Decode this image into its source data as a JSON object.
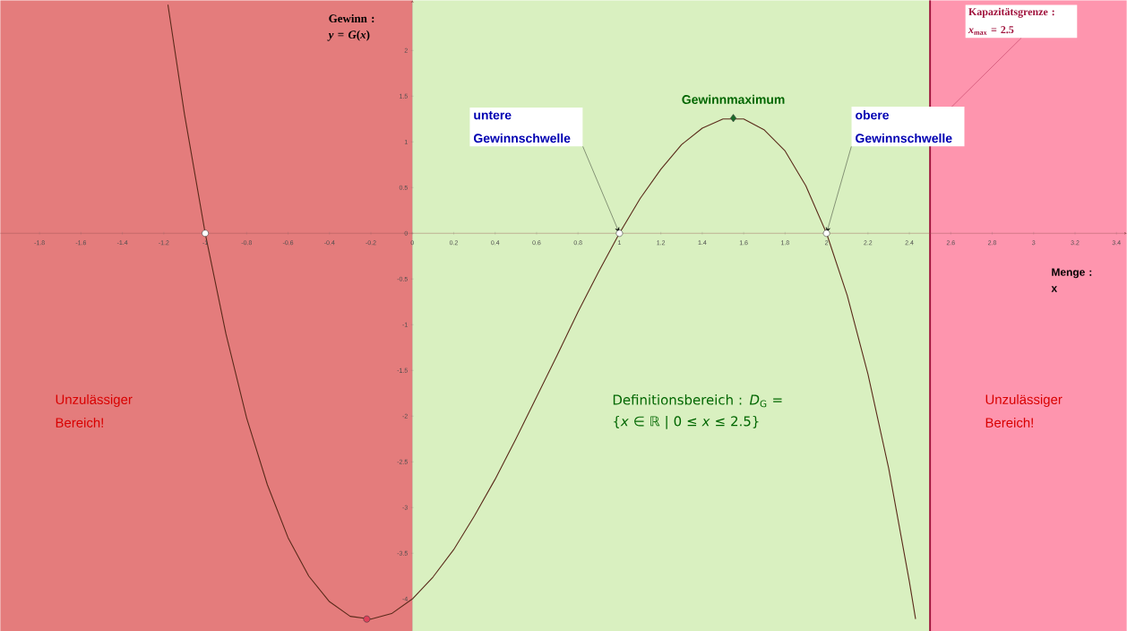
{
  "chart_data": {
    "type": "line",
    "ylabel": "Gewinn : *y* = *G*(*x*)",
    "xlabel": "Menge : x",
    "xlim": [
      -1.99,
      3.45
    ],
    "ylim": [
      -4.35,
      2.55
    ],
    "xticks": [
      -1.8,
      -1.6,
      -1.4,
      -1.2,
      -1,
      -0.8,
      -0.6,
      -0.4,
      -0.2,
      0,
      0.2,
      0.4,
      0.6,
      0.8,
      1,
      1.2,
      1.4,
      1.6,
      1.8,
      2,
      2.2,
      2.4,
      2.6,
      2.8,
      3,
      3.2,
      3.4
    ],
    "yticks": [
      -4,
      -3.5,
      -3,
      -2.5,
      -2,
      -1.5,
      -1,
      -0.5,
      0,
      0.5,
      1,
      1.5,
      2
    ],
    "series": [
      {
        "color": "#5a2a1a",
        "marker": "none",
        "x": [
          -1.18,
          -1.1,
          -1.0,
          -0.9,
          -0.8,
          -0.7,
          -0.6,
          -0.5,
          -0.4,
          -0.3,
          -0.2,
          -0.1,
          0,
          0.1,
          0.2,
          0.3,
          0.4,
          0.5,
          0.6,
          0.7,
          0.8,
          0.9,
          1.0,
          1.1,
          1.2,
          1.3,
          1.4,
          1.5,
          1.6,
          1.7,
          1.8,
          1.9,
          2.0,
          2.1,
          2.2,
          2.3,
          2.4,
          2.43
        ],
        "values": [
          2.5,
          1.3,
          0,
          -1.1,
          -2.02,
          -2.75,
          -3.33,
          -3.75,
          -4.03,
          -4.19,
          -4.22,
          -4.16,
          -4,
          -3.76,
          -3.46,
          -3.09,
          -2.69,
          -2.25,
          -1.79,
          -1.33,
          -0.86,
          -0.42,
          0,
          0.38,
          0.7,
          0.97,
          1.15,
          1.25,
          1.25,
          1.13,
          0.9,
          0.52,
          0,
          -0.68,
          -1.54,
          -2.57,
          -3.81,
          -4.22
        ]
      },
      {
        "type": "scatter",
        "color": "#ffffff",
        "marker": "circle",
        "x": [
          -1,
          1,
          2
        ],
        "values": [
          0,
          0,
          0
        ]
      },
      {
        "type": "scatter",
        "color": "#e0405a",
        "marker": "circle",
        "x": [
          -0.22
        ],
        "values": [
          -4.22
        ]
      },
      {
        "type": "scatter",
        "color": "#1a6b2a",
        "marker": "diamond",
        "x": [
          1.55
        ],
        "values": [
          1.26
        ]
      }
    ],
    "bands": [
      {
        "axis": "x",
        "from": -1.99,
        "to": 0,
        "label": "Unzulässiger Bereich!",
        "color": "#e47c7c"
      },
      {
        "axis": "x",
        "from": 0,
        "to": 2.5,
        "label": "Definitionsbereich : *D*$_{G}$ = {*x* ∈ ℝ | 0 ≤ *x* ≤ 2.5}",
        "color": "#d9f0c0"
      },
      {
        "axis": "x",
        "from": 2.5,
        "to": 3.45,
        "label": "Unzulässiger Bereich!",
        "color": "#fe95ae"
      }
    ],
    "ref_lines": [
      {
        "axis": "x",
        "value": 2.5,
        "label": "Kapazitätsgrenze : *x*$_{max}$ = 2.5",
        "color": "#a0123c"
      }
    ],
    "annotations": [
      {
        "text": "untere Gewinnschwelle",
        "x": 1,
        "y": 0
      },
      {
        "text": "obere Gewinnschwelle",
        "x": 2,
        "y": 0
      },
      {
        "text": "Gewinnmaximum",
        "x": 1.55,
        "y": 1.26
      }
    ]
  }
}
